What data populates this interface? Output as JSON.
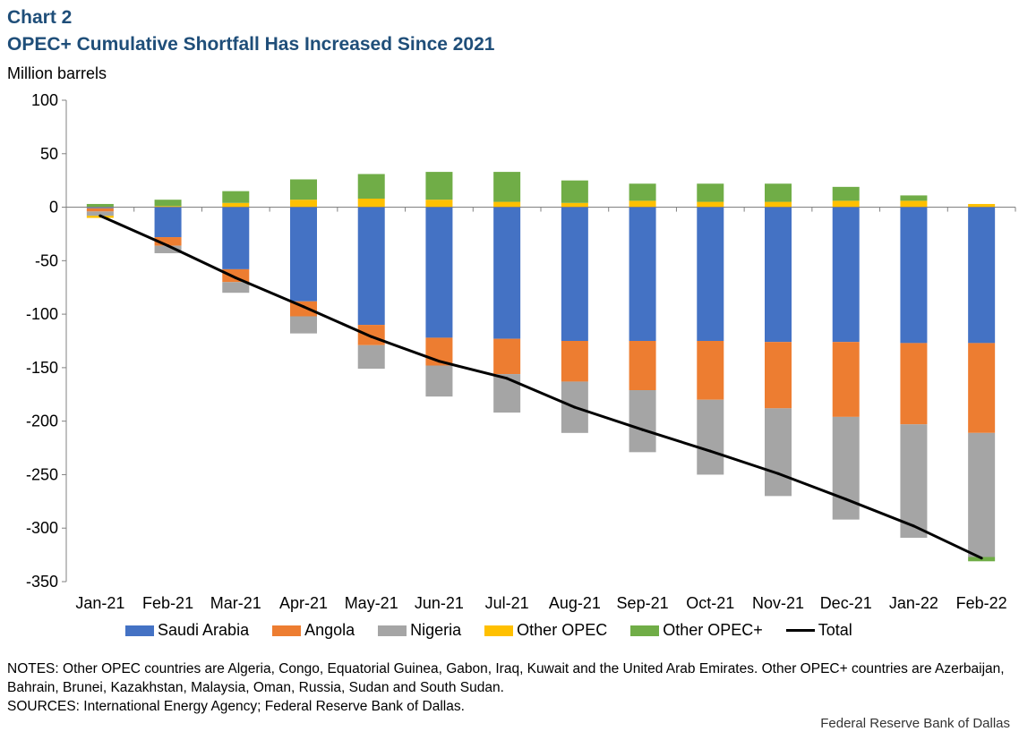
{
  "header": {
    "chart_label": "Chart 2",
    "title": "OPEC+ Cumulative Shortfall Has Increased Since 2021",
    "units": "Million barrels"
  },
  "legend": {
    "saudi": "Saudi Arabia",
    "angola": "Angola",
    "nigeria": "Nigeria",
    "other_opec": "Other OPEC",
    "other_opec_plus": "Other OPEC+",
    "total": "Total"
  },
  "notes": {
    "line1": "NOTES: Other OPEC countries are Algeria, Congo, Equatorial Guinea, Gabon, Iraq, Kuwait and the United Arab Emirates. Other OPEC+ countries are Azerbaijan, Bahrain, Brunei, Kazakhstan, Malaysia, Oman, Russia, Sudan and South Sudan.",
    "line2": "SOURCES: International Energy Agency; Federal Reserve Bank of Dallas."
  },
  "credit": "Federal Reserve Bank of Dallas",
  "colors": {
    "saudi": "#4472c4",
    "angola": "#ed7d31",
    "nigeria": "#a5a5a5",
    "other_opec": "#ffc000",
    "other_opec_plus": "#70ad47",
    "total": "#000000",
    "axis": "#808080"
  },
  "chart_data": {
    "type": "bar",
    "stacked": true,
    "title": "OPEC+ Cumulative Shortfall Has Increased Since 2021",
    "ylabel": "Million barrels",
    "ylim": [
      -350,
      100
    ],
    "yticks": [
      100,
      50,
      0,
      -50,
      -100,
      -150,
      -200,
      -250,
      -300,
      -350
    ],
    "categories": [
      "Jan-21",
      "Feb-21",
      "Mar-21",
      "Apr-21",
      "May-21",
      "Jun-21",
      "Jul-21",
      "Aug-21",
      "Sep-21",
      "Oct-21",
      "Nov-21",
      "Dec-21",
      "Jan-22",
      "Feb-22"
    ],
    "series": [
      {
        "key": "saudi",
        "name": "Saudi Arabia",
        "values": [
          -1,
          -28,
          -58,
          -88,
          -110,
          -122,
          -123,
          -125,
          -125,
          -125,
          -126,
          -126,
          -127,
          -127
        ]
      },
      {
        "key": "angola",
        "name": "Angola",
        "values": [
          -3,
          -8,
          -12,
          -14,
          -19,
          -26,
          -33,
          -38,
          -46,
          -55,
          -62,
          -70,
          -76,
          -84
        ]
      },
      {
        "key": "nigeria",
        "name": "Nigeria",
        "values": [
          -4,
          -7,
          -10,
          -16,
          -22,
          -29,
          -36,
          -48,
          -58,
          -70,
          -82,
          -96,
          -106,
          -116
        ]
      },
      {
        "key": "other_opec",
        "name": "Other OPEC",
        "values": [
          -2,
          1,
          4,
          7,
          8,
          7,
          5,
          4,
          6,
          5,
          5,
          6,
          6,
          3
        ]
      },
      {
        "key": "other_opec_plus",
        "name": "Other OPEC+",
        "values": [
          3,
          6,
          11,
          19,
          23,
          26,
          28,
          21,
          16,
          17,
          17,
          13,
          5,
          -4
        ]
      }
    ],
    "line": {
      "key": "total",
      "name": "Total",
      "values": [
        -8,
        -36,
        -66,
        -93,
        -121,
        -144,
        -160,
        -187,
        -208,
        -228,
        -249,
        -273,
        -298,
        -328
      ]
    }
  }
}
